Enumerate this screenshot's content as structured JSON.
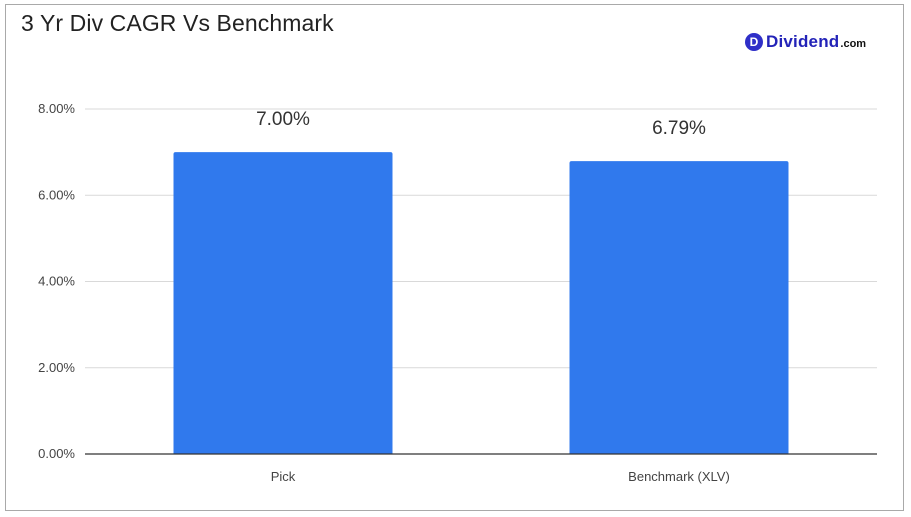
{
  "chart_data": {
    "type": "bar",
    "title": "3 Yr Div CAGR Vs Benchmark",
    "categories": [
      "Pick",
      "Benchmark (XLV)"
    ],
    "values": [
      7.0,
      6.79
    ],
    "data_labels": [
      "7.00%",
      "6.79%"
    ],
    "xlabel": "",
    "ylabel": "",
    "ylim": [
      0,
      8
    ],
    "yticks": [
      0,
      2,
      4,
      6,
      8
    ],
    "ytick_labels": [
      "0.00%",
      "2.00%",
      "4.00%",
      "6.00%",
      "8.00%"
    ],
    "grid": true,
    "bar_color": "#3079ed"
  },
  "brand": {
    "badge": "D",
    "name": "Dividend",
    "suffix": ".com",
    "color": "#2323b8"
  }
}
